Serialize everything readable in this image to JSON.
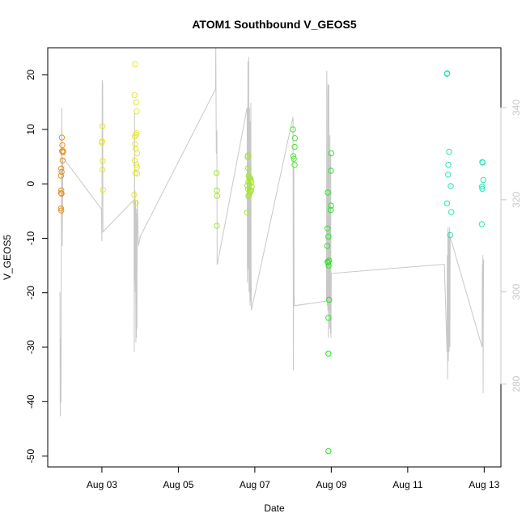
{
  "chart_data": {
    "type": "scatter",
    "title": "ATOM1 Southbound V_GEOS5",
    "xlabel": "Date",
    "ylabel": "V_GEOS5",
    "x_is_date": true,
    "xlim": [
      "2016-08-01T14:00",
      "2016-08-13T10:30"
    ],
    "ylim": [
      -52,
      25
    ],
    "x_ticks": [
      {
        "value": "2016-08-03T00:00",
        "label": "Aug 03"
      },
      {
        "value": "2016-08-05T00:00",
        "label": "Aug 05"
      },
      {
        "value": "2016-08-07T00:00",
        "label": "Aug 07"
      },
      {
        "value": "2016-08-09T00:00",
        "label": "Aug 09"
      },
      {
        "value": "2016-08-11T00:00",
        "label": "Aug 11"
      },
      {
        "value": "2016-08-13T00:00",
        "label": "Aug 13"
      }
    ],
    "y_ticks": [
      20,
      10,
      0,
      -10,
      -20,
      -30,
      -40,
      -50
    ],
    "right_axis": {
      "ylim": [
        262,
        353
      ],
      "ticks": [
        340,
        320,
        300,
        280
      ],
      "color": "#c8c8c8"
    },
    "grid": false,
    "legend": "none",
    "series": [
      {
        "color": "#e8922a",
        "points": [
          [
            "2016-08-01T22:20",
            1.5
          ],
          [
            "2016-08-01T22:30",
            2.8
          ],
          [
            "2016-08-01T22:40",
            2.2
          ],
          [
            "2016-08-01T22:20",
            -1.7
          ],
          [
            "2016-08-01T22:30",
            -1.2
          ],
          [
            "2016-08-01T22:40",
            -1.8
          ],
          [
            "2016-08-01T22:20",
            -4.5
          ],
          [
            "2016-08-01T22:30",
            -4.9
          ],
          [
            "2016-08-01T22:50",
            8.5
          ],
          [
            "2016-08-01T23:00",
            6.0
          ],
          [
            "2016-08-01T23:10",
            7.1
          ],
          [
            "2016-08-01T23:30",
            5.8
          ],
          [
            "2016-08-01T23:40",
            6.0
          ],
          [
            "2016-08-01T23:20",
            4.3
          ]
        ]
      },
      {
        "color": "#e6e632",
        "points": [
          [
            "2016-08-03T00:00",
            7.6
          ],
          [
            "2016-08-03T00:10",
            7.8
          ],
          [
            "2016-08-03T00:20",
            10.6
          ],
          [
            "2016-08-03T00:30",
            4.2
          ],
          [
            "2016-08-03T00:20",
            2.6
          ],
          [
            "2016-08-03T00:40",
            -1.1
          ],
          [
            "2016-08-03T20:50",
            22.0
          ],
          [
            "2016-08-03T20:30",
            16.3
          ],
          [
            "2016-08-03T21:30",
            15.0
          ],
          [
            "2016-08-03T21:50",
            13.3
          ],
          [
            "2016-08-03T20:40",
            8.7
          ],
          [
            "2016-08-03T21:20",
            9.0
          ],
          [
            "2016-08-03T21:40",
            9.3
          ],
          [
            "2016-08-03T20:50",
            7.3
          ],
          [
            "2016-08-03T21:10",
            6.5
          ],
          [
            "2016-08-03T22:10",
            5.6
          ],
          [
            "2016-08-03T20:40",
            4.3
          ],
          [
            "2016-08-03T21:40",
            3.5
          ],
          [
            "2016-08-03T22:00",
            3.0
          ],
          [
            "2016-08-03T21:00",
            2.0
          ],
          [
            "2016-08-03T22:10",
            1.9
          ],
          [
            "2016-08-03T20:20",
            -2.0
          ],
          [
            "2016-08-03T21:20",
            -3.5
          ]
        ]
      },
      {
        "color": "#a6e632",
        "points": [
          [
            "2016-08-06T00:00",
            2.0
          ],
          [
            "2016-08-06T00:10",
            -1.2
          ],
          [
            "2016-08-06T00:20",
            -2.2
          ],
          [
            "2016-08-06T00:10",
            -7.7
          ],
          [
            "2016-08-06T19:30",
            4.9
          ],
          [
            "2016-08-06T19:40",
            5.2
          ],
          [
            "2016-08-06T19:50",
            2.9
          ],
          [
            "2016-08-06T20:10",
            1.5
          ],
          [
            "2016-08-06T20:30",
            1.2
          ],
          [
            "2016-08-06T21:10",
            1.0
          ],
          [
            "2016-08-06T21:30",
            0.6
          ],
          [
            "2016-08-06T20:00",
            0.4
          ],
          [
            "2016-08-06T21:50",
            0.3
          ],
          [
            "2016-08-06T19:20",
            -0.3
          ],
          [
            "2016-08-06T20:40",
            -0.2
          ],
          [
            "2016-08-06T22:00",
            -0.5
          ],
          [
            "2016-08-06T19:50",
            -1.0
          ],
          [
            "2016-08-06T20:50",
            -1.3
          ],
          [
            "2016-08-06T21:40",
            -1.2
          ],
          [
            "2016-08-06T20:20",
            -2.0
          ],
          [
            "2016-08-06T20:00",
            -2.3
          ],
          [
            "2016-08-06T19:10",
            -5.3
          ],
          [
            "2016-08-06T21:20",
            -1.5
          ]
        ]
      },
      {
        "color": "#50e632",
        "points": [
          [
            "2016-08-08T00:00",
            10.0
          ],
          [
            "2016-08-08T01:10",
            8.4
          ],
          [
            "2016-08-08T01:00",
            6.8
          ],
          [
            "2016-08-08T00:10",
            5.1
          ],
          [
            "2016-08-08T00:30",
            4.6
          ],
          [
            "2016-08-08T01:00",
            3.5
          ]
        ]
      },
      {
        "color": "#28e628",
        "points": [
          [
            "2016-08-08T21:50",
            -1.6
          ],
          [
            "2016-08-08T21:40",
            -8.2
          ],
          [
            "2016-08-08T22:10",
            -9.7
          ],
          [
            "2016-08-08T21:30",
            -11.4
          ],
          [
            "2016-08-08T21:40",
            -14.3
          ],
          [
            "2016-08-08T22:00",
            -14.5
          ],
          [
            "2016-08-08T22:40",
            -14.1
          ],
          [
            "2016-08-08T22:20",
            -15.0
          ],
          [
            "2016-08-08T22:40",
            -21.3
          ],
          [
            "2016-08-08T22:10",
            -24.6
          ],
          [
            "2016-08-08T22:10",
            -31.2
          ],
          [
            "2016-08-08T22:10",
            -49.1
          ],
          [
            "2016-08-09T00:00",
            5.6
          ],
          [
            "2016-08-08T23:50",
            2.4
          ],
          [
            "2016-08-08T23:50",
            -4.0
          ],
          [
            "2016-08-08T23:40",
            -4.8
          ]
        ]
      },
      {
        "color": "#28e6b4",
        "points": [
          [
            "2016-08-12T00:40",
            20.2
          ],
          [
            "2016-08-12T00:50",
            20.3
          ],
          [
            "2016-08-12T02:00",
            5.9
          ],
          [
            "2016-08-12T01:30",
            3.5
          ],
          [
            "2016-08-12T01:20",
            1.7
          ],
          [
            "2016-08-12T03:00",
            -0.4
          ],
          [
            "2016-08-12T00:40",
            -3.6
          ],
          [
            "2016-08-12T03:20",
            -5.2
          ],
          [
            "2016-08-12T02:40",
            -9.4
          ],
          [
            "2016-08-12T22:50",
            4.0
          ],
          [
            "2016-08-12T23:00",
            3.9
          ],
          [
            "2016-08-12T23:30",
            0.7
          ],
          [
            "2016-08-12T22:40",
            -0.5
          ],
          [
            "2016-08-12T22:50",
            -0.9
          ],
          [
            "2016-08-12T22:30",
            -7.4
          ]
        ]
      }
    ],
    "overlay_line": {
      "axis": "right",
      "color": "#c8c8c8",
      "points": [
        [
          "2016-08-01T21:40",
          300
        ],
        [
          "2016-08-01T21:50",
          273
        ],
        [
          "2016-08-01T22:00",
          290
        ],
        [
          "2016-08-01T22:10",
          282
        ],
        [
          "2016-08-01T22:20",
          276
        ],
        [
          "2016-08-01T22:30",
          305
        ],
        [
          "2016-08-01T22:40",
          327
        ],
        [
          "2016-08-01T22:50",
          340
        ],
        [
          "2016-08-01T23:00",
          330
        ],
        [
          "2016-08-01T23:10",
          310
        ],
        [
          "2016-08-01T23:20",
          322
        ],
        [
          "2016-08-01T23:30",
          329
        ],
        [
          "2016-08-01T23:40",
          329
        ],
        [
          "2016-08-01T23:50",
          329
        ],
        [
          "2016-08-02T23:40",
          318
        ],
        [
          "2016-08-03T00:00",
          311
        ],
        [
          "2016-08-03T00:10",
          346
        ],
        [
          "2016-08-03T00:30",
          345
        ],
        [
          "2016-08-03T00:40",
          313
        ],
        [
          "2016-08-03T20:10",
          320
        ],
        [
          "2016-08-03T20:20",
          287
        ],
        [
          "2016-08-03T20:30",
          339
        ],
        [
          "2016-08-03T20:40",
          302
        ],
        [
          "2016-08-03T20:50",
          322
        ],
        [
          "2016-08-03T21:00",
          300
        ],
        [
          "2016-08-03T21:10",
          320
        ],
        [
          "2016-08-03T21:20",
          289
        ],
        [
          "2016-08-03T21:30",
          317
        ],
        [
          "2016-08-03T21:40",
          290
        ],
        [
          "2016-08-03T21:50",
          318
        ],
        [
          "2016-08-03T22:00",
          292
        ],
        [
          "2016-08-03T22:10",
          320
        ],
        [
          "2016-08-03T23:00",
          310
        ],
        [
          "2016-08-04T00:00",
          312
        ],
        [
          "2016-08-05T23:20",
          344
        ],
        [
          "2016-08-05T23:30",
          353
        ],
        [
          "2016-08-05T23:50",
          330
        ],
        [
          "2016-08-06T00:10",
          335
        ],
        [
          "2016-08-06T00:20",
          306
        ],
        [
          "2016-08-06T00:30",
          306
        ],
        [
          "2016-08-06T19:10",
          340
        ],
        [
          "2016-08-06T19:20",
          302
        ],
        [
          "2016-08-06T19:30",
          306
        ],
        [
          "2016-08-06T19:40",
          350
        ],
        [
          "2016-08-06T19:50",
          305
        ],
        [
          "2016-08-06T20:00",
          314
        ],
        [
          "2016-08-06T20:10",
          351
        ],
        [
          "2016-08-06T20:20",
          300
        ],
        [
          "2016-08-06T20:30",
          310
        ],
        [
          "2016-08-06T20:40",
          340
        ],
        [
          "2016-08-06T20:50",
          300
        ],
        [
          "2016-08-06T21:00",
          297
        ],
        [
          "2016-08-06T21:10",
          337
        ],
        [
          "2016-08-06T21:20",
          298
        ],
        [
          "2016-08-06T21:30",
          341
        ],
        [
          "2016-08-06T21:40",
          305
        ],
        [
          "2016-08-06T21:50",
          296
        ],
        [
          "2016-08-08T00:00",
          338
        ],
        [
          "2016-08-08T00:10",
          283
        ],
        [
          "2016-08-08T00:20",
          299
        ],
        [
          "2016-08-08T00:30",
          327
        ],
        [
          "2016-08-08T00:40",
          300
        ],
        [
          "2016-08-08T00:50",
          297
        ],
        [
          "2016-08-08T21:00",
          298
        ],
        [
          "2016-08-08T21:10",
          348
        ],
        [
          "2016-08-08T21:20",
          342
        ],
        [
          "2016-08-08T21:30",
          297
        ],
        [
          "2016-08-08T21:40",
          320
        ],
        [
          "2016-08-08T21:50",
          296
        ],
        [
          "2016-08-08T22:00",
          345
        ],
        [
          "2016-08-08T22:10",
          290
        ],
        [
          "2016-08-08T22:20",
          298
        ],
        [
          "2016-08-08T22:30",
          345
        ],
        [
          "2016-08-08T22:40",
          296
        ],
        [
          "2016-08-08T22:50",
          318
        ],
        [
          "2016-08-08T23:00",
          292
        ],
        [
          "2016-08-08T23:10",
          334
        ],
        [
          "2016-08-08T23:20",
          297
        ],
        [
          "2016-08-08T23:30",
          291
        ],
        [
          "2016-08-08T23:40",
          330
        ],
        [
          "2016-08-08T23:50",
          290
        ],
        [
          "2016-08-09T00:00",
          304
        ],
        [
          "2016-08-11T23:00",
          306
        ],
        [
          "2016-08-12T00:40",
          287
        ],
        [
          "2016-08-12T00:50",
          308
        ],
        [
          "2016-08-12T01:00",
          281
        ],
        [
          "2016-08-12T01:10",
          312
        ],
        [
          "2016-08-12T01:20",
          314
        ],
        [
          "2016-08-12T01:30",
          285
        ],
        [
          "2016-08-12T01:40",
          290
        ],
        [
          "2016-08-12T01:50",
          313
        ],
        [
          "2016-08-12T02:00",
          287
        ],
        [
          "2016-08-12T02:10",
          310
        ],
        [
          "2016-08-12T02:20",
          314
        ],
        [
          "2016-08-12T02:30",
          288
        ],
        [
          "2016-08-12T02:40",
          312
        ],
        [
          "2016-08-12T22:40",
          288
        ],
        [
          "2016-08-12T22:50",
          306
        ],
        [
          "2016-08-12T23:00",
          296
        ],
        [
          "2016-08-12T23:10",
          308
        ],
        [
          "2016-08-12T23:20",
          278
        ],
        [
          "2016-08-12T23:30",
          298
        ],
        [
          "2016-08-12T23:40",
          307
        ]
      ]
    }
  }
}
